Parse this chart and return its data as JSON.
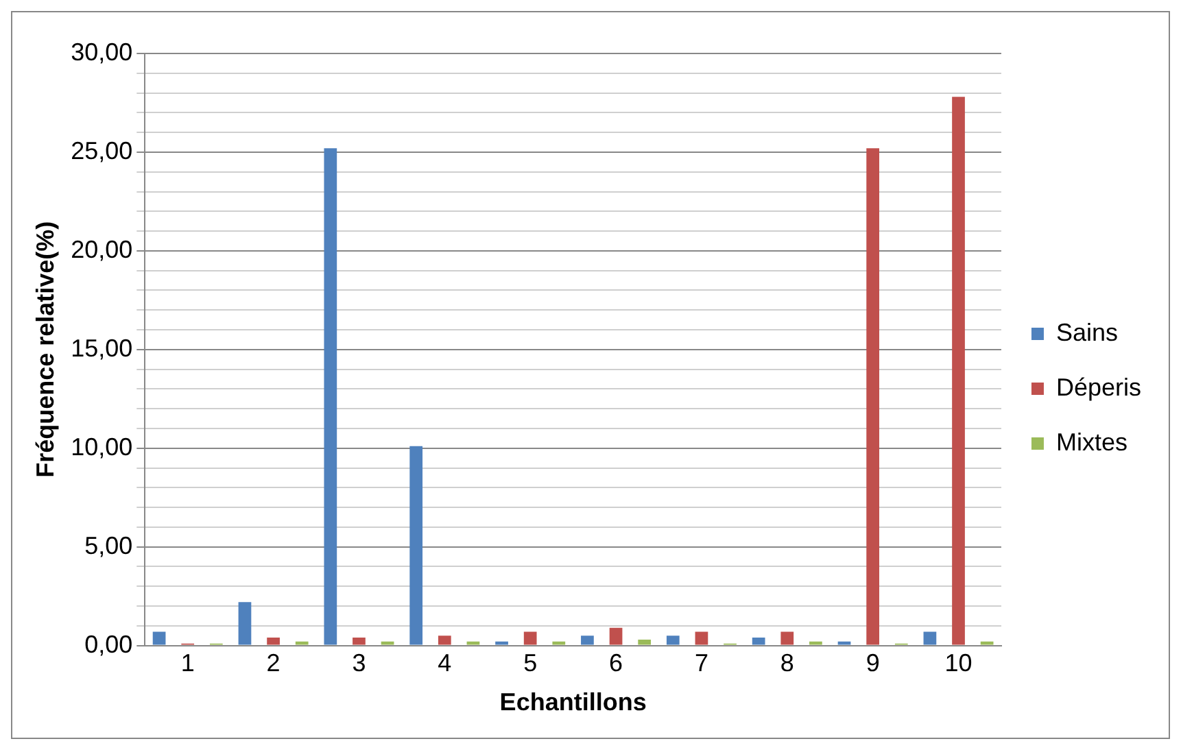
{
  "chart_data": {
    "type": "bar",
    "xlabel": "Echantillons",
    "ylabel": "Fréquence relative(%)",
    "categories": [
      "1",
      "2",
      "3",
      "4",
      "5",
      "6",
      "7",
      "8",
      "9",
      "10"
    ],
    "series": [
      {
        "name": "Sains",
        "color": "#4f81bd",
        "values": [
          0.7,
          2.2,
          25.2,
          10.1,
          0.2,
          0.5,
          0.5,
          0.4,
          0.2,
          0.7
        ]
      },
      {
        "name": "Déperis",
        "color": "#c0504d",
        "values": [
          0.1,
          0.4,
          0.4,
          0.5,
          0.7,
          0.9,
          0.7,
          0.7,
          25.2,
          27.8
        ]
      },
      {
        "name": "Mixtes",
        "color": "#9bbb59",
        "values": [
          0.1,
          0.2,
          0.2,
          0.2,
          0.2,
          0.3,
          0.1,
          0.2,
          0.1,
          0.2
        ]
      }
    ],
    "ylim": [
      0,
      30
    ],
    "yticks": [
      {
        "value": 0,
        "label": "0,00"
      },
      {
        "value": 1,
        "label": null
      },
      {
        "value": 2,
        "label": null
      },
      {
        "value": 3,
        "label": null
      },
      {
        "value": 4,
        "label": null
      },
      {
        "value": 5,
        "label": "5,00"
      },
      {
        "value": 6,
        "label": null
      },
      {
        "value": 7,
        "label": null
      },
      {
        "value": 8,
        "label": null
      },
      {
        "value": 9,
        "label": null
      },
      {
        "value": 10,
        "label": "10,00"
      },
      {
        "value": 11,
        "label": null
      },
      {
        "value": 12,
        "label": null
      },
      {
        "value": 13,
        "label": null
      },
      {
        "value": 14,
        "label": null
      },
      {
        "value": 15,
        "label": "15,00"
      },
      {
        "value": 16,
        "label": null
      },
      {
        "value": 17,
        "label": null
      },
      {
        "value": 18,
        "label": null
      },
      {
        "value": 19,
        "label": null
      },
      {
        "value": 20,
        "label": "20,00"
      },
      {
        "value": 21,
        "label": null
      },
      {
        "value": 22,
        "label": null
      },
      {
        "value": 23,
        "label": null
      },
      {
        "value": 24,
        "label": null
      },
      {
        "value": 25,
        "label": "25,00"
      },
      {
        "value": 26,
        "label": null
      },
      {
        "value": 27,
        "label": null
      },
      {
        "value": 28,
        "label": null
      },
      {
        "value": 29,
        "label": null
      },
      {
        "value": 30,
        "label": "30,00"
      }
    ],
    "grid": "y",
    "legend": "right"
  }
}
